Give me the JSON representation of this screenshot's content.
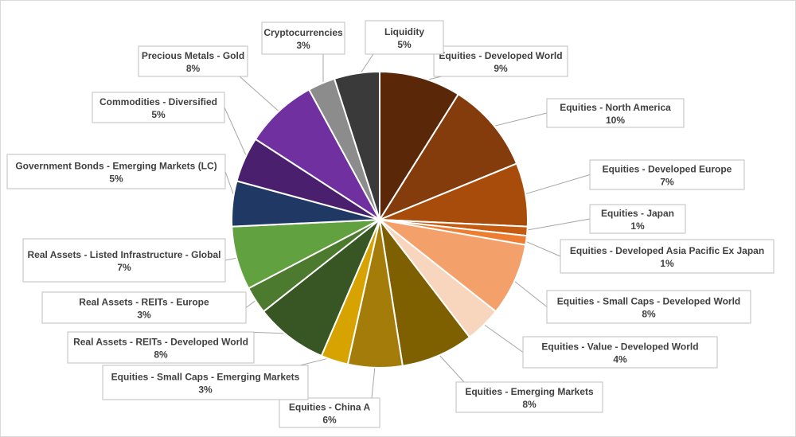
{
  "chart_data": {
    "type": "pie",
    "title": "",
    "start_angle_deg": 0,
    "direction": "clockwise",
    "slices": [
      {
        "name": "Equities - Developed World",
        "value": 9,
        "label": "9%",
        "color": "#5a2708"
      },
      {
        "name": "Equities - North America",
        "value": 10,
        "label": "10%",
        "color": "#843c0c"
      },
      {
        "name": "Equities - Developed Europe",
        "value": 7,
        "label": "7%",
        "color": "#a84c0b"
      },
      {
        "name": "Equities - Japan",
        "value": 1,
        "label": "1%",
        "color": "#c55a11"
      },
      {
        "name": "Equities - Developed Asia Pacific Ex Japan",
        "value": 1,
        "label": "1%",
        "color": "#ed7d31"
      },
      {
        "name": "Equities - Small Caps - Developed World",
        "value": 8,
        "label": "8%",
        "color": "#f4a06b"
      },
      {
        "name": "Equities - Value - Developed World",
        "value": 4,
        "label": "4%",
        "color": "#f8d6bd"
      },
      {
        "name": "Equities - Emerging Markets",
        "value": 8,
        "label": "8%",
        "color": "#7f6000"
      },
      {
        "name": "Equities - China A",
        "value": 6,
        "label": "6%",
        "color": "#a47c0a"
      },
      {
        "name": "Equities - Small Caps - Emerging Markets",
        "value": 3,
        "label": "3%",
        "color": "#d6a301"
      },
      {
        "name": "Real Assets - REITs - Developed World",
        "value": 8,
        "label": "8%",
        "color": "#375623"
      },
      {
        "name": "Real Assets - REITs - Europe",
        "value": 3,
        "label": "3%",
        "color": "#4c7a2e"
      },
      {
        "name": "Real Assets - Listed Infrastructure - Global",
        "value": 7,
        "label": "7%",
        "color": "#62a13f"
      },
      {
        "name": "Government Bonds - Emerging Markets (LC)",
        "value": 5,
        "label": "5%",
        "color": "#203864"
      },
      {
        "name": "Commodities - Diversified",
        "value": 5,
        "label": "5%",
        "color": "#4a1f6d"
      },
      {
        "name": "Precious Metals - Gold",
        "value": 8,
        "label": "8%",
        "color": "#7030a0"
      },
      {
        "name": "Cryptocurrencies",
        "value": 3,
        "label": "3%",
        "color": "#8c8c8c"
      },
      {
        "name": "Liquidity",
        "value": 5,
        "label": "5%",
        "color": "#3a3a3a"
      }
    ]
  }
}
